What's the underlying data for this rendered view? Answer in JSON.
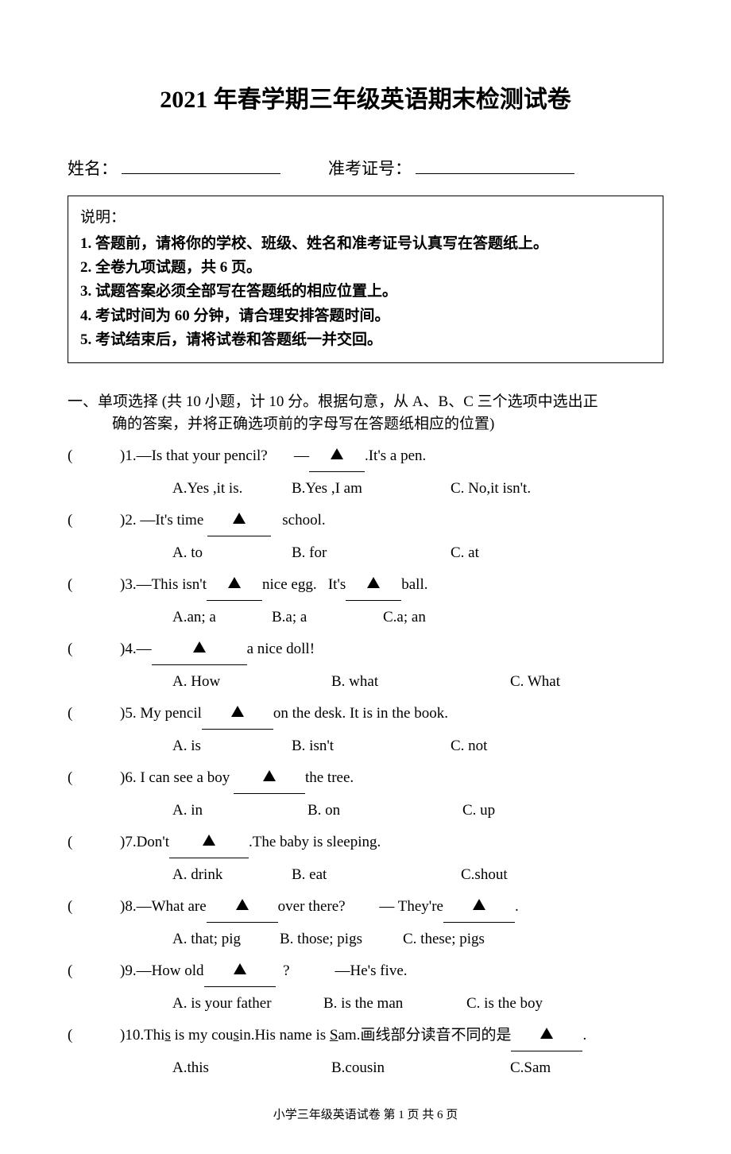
{
  "title": "2021 年春学期三年级英语期末检测试卷",
  "meta": {
    "name_label": "姓名：",
    "ticket_label": "准考证号："
  },
  "instructions": {
    "heading": "说明：",
    "lines": [
      "1. 答题前，请将你的学校、班级、姓名和准考证号认真写在答题纸上。",
      "2. 全卷九项试题，共 6 页。",
      "3. 试题答案必须全部写在答题纸的相应位置上。",
      "4. 考试时间为 60 分钟，请合理安排答题时间。",
      "5. 考试结束后，请将试卷和答题纸一并交回。"
    ]
  },
  "section1": {
    "header_line1": "一、单项选择 (共 10 小题，计 10 分。根据句意，从 A、B、C 三个选项中选出正",
    "header_line2": "确的答案，并将正确选项前的字母写在答题纸相应的位置)"
  },
  "questions": [
    {
      "num": "1.",
      "prompt_before": "—Is that your pencil?",
      "prompt_gap": "       —",
      "prompt_after": ".It's a pen.",
      "blank_w": 70,
      "opts": {
        "a": "A.Yes ,it is.",
        "b": "B.Yes ,I am",
        "c": "C. No,it isn't."
      },
      "widths": [
        150,
        200,
        160
      ]
    },
    {
      "num": "2.",
      "prompt_before": " —It's time ",
      "prompt_gap": "   school.",
      "prompt_after": "",
      "blank_w": 80,
      "opts": {
        "a": "A. to",
        "b": "B. for",
        "c": "C. at"
      },
      "widths": [
        150,
        200,
        80
      ]
    },
    {
      "num": "3.",
      "prompt_before": "—This isn't",
      "prompt_gap": "nice egg.   It's",
      "prompt_after": "ball.",
      "blank_w": 70,
      "two_blanks": true,
      "opts": {
        "a": "A.an; a",
        "b": "B.a; a",
        "c": "C.a; an"
      },
      "widths": [
        125,
        140,
        80
      ]
    },
    {
      "num": "4.",
      "prompt_before": "—",
      "prompt_gap": "a nice doll!",
      "prompt_after": "",
      "blank_w": 120,
      "opts": {
        "a": "A. How",
        "b": "B. what",
        "c": "C. What"
      },
      "widths": [
        200,
        225,
        100
      ]
    },
    {
      "num": "5.",
      "prompt_before": " My pencil",
      "prompt_gap": "on the desk. It is in the book.",
      "prompt_after": "",
      "blank_w": 90,
      "opts": {
        "a": "A. is",
        "b": "B. isn't",
        "c": "C. not"
      },
      "widths": [
        150,
        200,
        80
      ]
    },
    {
      "num": "6.",
      "prompt_before": " I can see a boy ",
      "prompt_gap": "the tree.",
      "prompt_after": "",
      "blank_w": 90,
      "opts": {
        "a": "A. in",
        "b": "B. on",
        "c": "C. up"
      },
      "widths": [
        170,
        195,
        80
      ]
    },
    {
      "num": "7.",
      "prompt_before": "Don't",
      "prompt_gap": ".The baby is sleeping.",
      "prompt_after": "",
      "blank_w": 100,
      "opts": {
        "a": "A. drink",
        "b": "B. eat",
        "c": "C.shout"
      },
      "widths": [
        150,
        213,
        80
      ]
    },
    {
      "num": "8.",
      "prompt_before": "—What are",
      "prompt_gap": "over there?         — They're",
      "prompt_after": ".",
      "blank_w": 90,
      "two_blanks": true,
      "opts": {
        "a": "A. that; pig",
        "b": "B. those; pigs",
        "c": "C. these; pigs"
      },
      "widths": [
        135,
        155,
        130
      ]
    },
    {
      "num": "9.",
      "prompt_before": "—How old",
      "prompt_gap": "  ?            —He's five.",
      "prompt_after": "",
      "blank_w": 90,
      "opts": {
        "a": "A. is your father",
        "b": "B. is the man",
        "c": "C. is the boy"
      },
      "widths": [
        190,
        180,
        130
      ]
    }
  ],
  "q10": {
    "num": "10.",
    "prefix": "Thi",
    "u1": "s",
    "mid1": " is my cou",
    "u2": "s",
    "mid2": "in.His name is ",
    "u3": "S",
    "mid3": "am.画线部分读音不同的是",
    "blank_w": 90,
    "suffix": ".",
    "opts": {
      "a": "A.this",
      "b": "B.cousin",
      "c": "C.Sam"
    },
    "widths": [
      200,
      225,
      80
    ]
  },
  "footer": "小学三年级英语试卷 第 1 页 共 6 页"
}
